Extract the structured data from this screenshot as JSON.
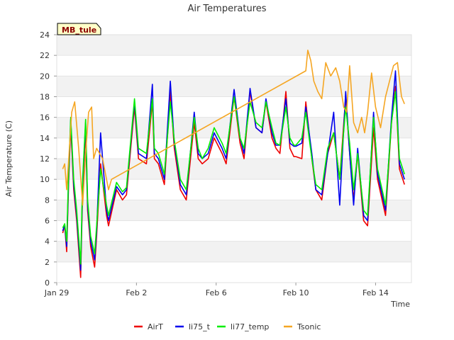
{
  "chart_data": {
    "type": "line",
    "title": "Air Temperatures",
    "xlabel": "Time",
    "ylabel": "Air Temperature (C)",
    "badge": "MB_tule",
    "x_unit": "days since Jan 29",
    "xlim": [
      0,
      17.8
    ],
    "ylim": [
      0,
      24
    ],
    "yticks": [
      0,
      2,
      4,
      6,
      8,
      10,
      12,
      14,
      16,
      18,
      20,
      22,
      24
    ],
    "xticks": [
      {
        "value": 0,
        "label": "Jan 29"
      },
      {
        "value": 4,
        "label": "Feb 2"
      },
      {
        "value": 8,
        "label": "Feb 6"
      },
      {
        "value": 12,
        "label": "Feb 10"
      },
      {
        "value": 16,
        "label": "Feb 14"
      }
    ],
    "legend_position": "bottom-center",
    "series": [
      {
        "name": "AirT",
        "color": "#ee0000",
        "x": [
          0.3,
          0.4,
          0.5,
          0.6,
          0.7,
          0.85,
          1.0,
          1.2,
          1.3,
          1.45,
          1.55,
          1.7,
          1.9,
          2.0,
          2.2,
          2.5,
          2.6,
          3.0,
          3.3,
          3.5,
          3.9,
          4.1,
          4.5,
          4.8,
          4.9,
          5.1,
          5.4,
          5.7,
          5.9,
          6.2,
          6.5,
          6.9,
          7.1,
          7.3,
          7.6,
          7.9,
          8.3,
          8.5,
          8.9,
          9.2,
          9.4,
          9.7,
          10.0,
          10.3,
          10.5,
          10.8,
          11.0,
          11.2,
          11.5,
          11.7,
          11.9,
          12.0,
          12.3,
          12.5,
          12.8,
          13.0,
          13.3,
          13.6,
          13.9,
          14.2,
          14.5,
          14.7,
          14.9,
          15.1,
          15.4,
          15.6,
          15.9,
          16.1,
          16.5,
          16.8,
          17.0,
          17.2,
          17.45
        ],
        "values": [
          4.8,
          5.5,
          3.0,
          10.0,
          15.2,
          9.0,
          6.0,
          0.5,
          9.0,
          14.5,
          7.0,
          3.5,
          1.5,
          4.5,
          11.5,
          6.5,
          5.5,
          9.0,
          8.0,
          8.5,
          17.0,
          12.0,
          11.5,
          17.5,
          12.0,
          11.5,
          9.5,
          18.5,
          13.0,
          9.0,
          8.0,
          15.5,
          12.0,
          11.5,
          12.0,
          14.0,
          12.5,
          11.5,
          18.0,
          13.5,
          12.0,
          18.5,
          15.0,
          14.5,
          17.5,
          14.0,
          13.0,
          12.5,
          18.5,
          13.0,
          12.2,
          12.2,
          12.0,
          17.5,
          12.0,
          9.0,
          8.0,
          12.5,
          14.5,
          10.0,
          18.0,
          12.5,
          8.0,
          12.5,
          6.0,
          5.5,
          15.0,
          10.0,
          6.5,
          15.5,
          19.0,
          11.0,
          9.5
        ]
      },
      {
        "name": "li75_t",
        "color": "#0000ee",
        "x": [
          0.3,
          0.4,
          0.5,
          0.6,
          0.7,
          0.85,
          1.0,
          1.2,
          1.3,
          1.45,
          1.55,
          1.7,
          1.9,
          2.0,
          2.2,
          2.5,
          2.6,
          3.0,
          3.3,
          3.5,
          3.9,
          4.1,
          4.5,
          4.8,
          4.9,
          5.1,
          5.4,
          5.7,
          5.9,
          6.2,
          6.5,
          6.9,
          7.1,
          7.3,
          7.6,
          7.9,
          8.3,
          8.5,
          8.9,
          9.2,
          9.4,
          9.7,
          10.0,
          10.3,
          10.5,
          10.8,
          11.0,
          11.2,
          11.5,
          11.7,
          11.9,
          12.0,
          12.3,
          12.5,
          12.8,
          13.0,
          13.3,
          13.6,
          13.9,
          14.2,
          14.5,
          14.7,
          14.9,
          15.1,
          15.4,
          15.6,
          15.9,
          16.1,
          16.5,
          16.8,
          17.0,
          17.2,
          17.45
        ],
        "values": [
          5.0,
          5.6,
          3.5,
          10.5,
          15.8,
          9.5,
          6.5,
          1.2,
          9.5,
          15.5,
          7.5,
          4.0,
          2.2,
          5.0,
          14.5,
          7.0,
          6.0,
          9.3,
          8.5,
          9.0,
          17.5,
          12.5,
          12.0,
          19.2,
          12.5,
          12.0,
          10.0,
          19.5,
          13.5,
          9.5,
          8.5,
          16.5,
          12.5,
          12.0,
          12.5,
          14.5,
          13.0,
          12.0,
          18.7,
          14.0,
          12.5,
          18.8,
          15.0,
          14.5,
          17.8,
          14.5,
          13.3,
          13.3,
          17.8,
          13.5,
          13.2,
          13.2,
          13.5,
          17.0,
          12.5,
          9.0,
          8.5,
          12.5,
          16.5,
          7.5,
          18.5,
          12.5,
          7.5,
          13.0,
          6.5,
          6.0,
          16.5,
          10.5,
          7.0,
          16.0,
          20.5,
          11.5,
          10.0
        ]
      },
      {
        "name": "li77_temp",
        "color": "#00ee00",
        "x": [
          0.3,
          0.4,
          0.5,
          0.6,
          0.7,
          0.85,
          1.0,
          1.2,
          1.3,
          1.45,
          1.55,
          1.7,
          1.9,
          2.0,
          2.2,
          2.5,
          2.6,
          3.0,
          3.3,
          3.5,
          3.9,
          4.1,
          4.5,
          4.8,
          4.9,
          5.1,
          5.4,
          5.7,
          5.9,
          6.2,
          6.5,
          6.9,
          7.1,
          7.3,
          7.6,
          7.9,
          8.3,
          8.5,
          8.9,
          9.2,
          9.4,
          9.7,
          10.0,
          10.3,
          10.5,
          10.8,
          11.0,
          11.2,
          11.5,
          11.7,
          11.9,
          12.0,
          12.3,
          12.5,
          12.8,
          13.0,
          13.3,
          13.6,
          13.9,
          14.2,
          14.5,
          14.7,
          14.9,
          15.1,
          15.4,
          15.6,
          15.9,
          16.1,
          16.5,
          16.8,
          17.0,
          17.2,
          17.45
        ],
        "values": [
          5.3,
          5.7,
          4.0,
          11.0,
          16.0,
          10.0,
          7.0,
          1.8,
          10.0,
          15.8,
          8.0,
          4.5,
          2.8,
          5.5,
          11.0,
          7.5,
          6.5,
          9.7,
          8.8,
          9.2,
          17.8,
          13.0,
          12.5,
          17.8,
          13.0,
          12.5,
          10.5,
          17.5,
          13.8,
          10.0,
          9.0,
          16.0,
          13.0,
          12.0,
          13.0,
          15.0,
          13.5,
          12.5,
          18.0,
          14.0,
          13.0,
          17.5,
          15.5,
          15.0,
          17.5,
          15.0,
          13.5,
          13.3,
          17.0,
          14.0,
          13.3,
          13.3,
          14.0,
          16.5,
          12.0,
          9.5,
          9.0,
          13.0,
          14.5,
          10.0,
          17.0,
          13.5,
          9.0,
          12.5,
          7.0,
          6.5,
          16.0,
          11.0,
          7.5,
          15.5,
          18.5,
          12.0,
          10.5
        ]
      },
      {
        "name": "Tsonic",
        "color": "#f5a623",
        "x": [
          0.3,
          0.4,
          0.5,
          0.6,
          0.75,
          0.9,
          1.1,
          1.3,
          1.45,
          1.6,
          1.75,
          1.85,
          2.0,
          2.3,
          2.6,
          2.75,
          12.5,
          12.6,
          12.75,
          12.9,
          13.1,
          13.3,
          13.5,
          13.75,
          14.0,
          14.2,
          14.4,
          14.55,
          14.7,
          14.9,
          15.1,
          15.3,
          15.45,
          15.6,
          15.8,
          16.0,
          16.25,
          16.5,
          16.7,
          16.9,
          17.1,
          17.3,
          17.45
        ],
        "values": [
          11.0,
          11.5,
          9.0,
          12.0,
          16.5,
          17.5,
          13.0,
          7.5,
          12.5,
          16.5,
          17.0,
          12.0,
          13.0,
          12.0,
          9.0,
          10.0,
          20.5,
          22.5,
          21.5,
          19.5,
          18.5,
          17.8,
          21.3,
          20.0,
          20.8,
          19.5,
          17.0,
          16.5,
          21.0,
          15.5,
          14.5,
          16.0,
          14.5,
          16.5,
          20.3,
          17.0,
          15.0,
          18.0,
          19.5,
          21.0,
          21.3,
          18.0,
          17.3
        ]
      }
    ]
  }
}
